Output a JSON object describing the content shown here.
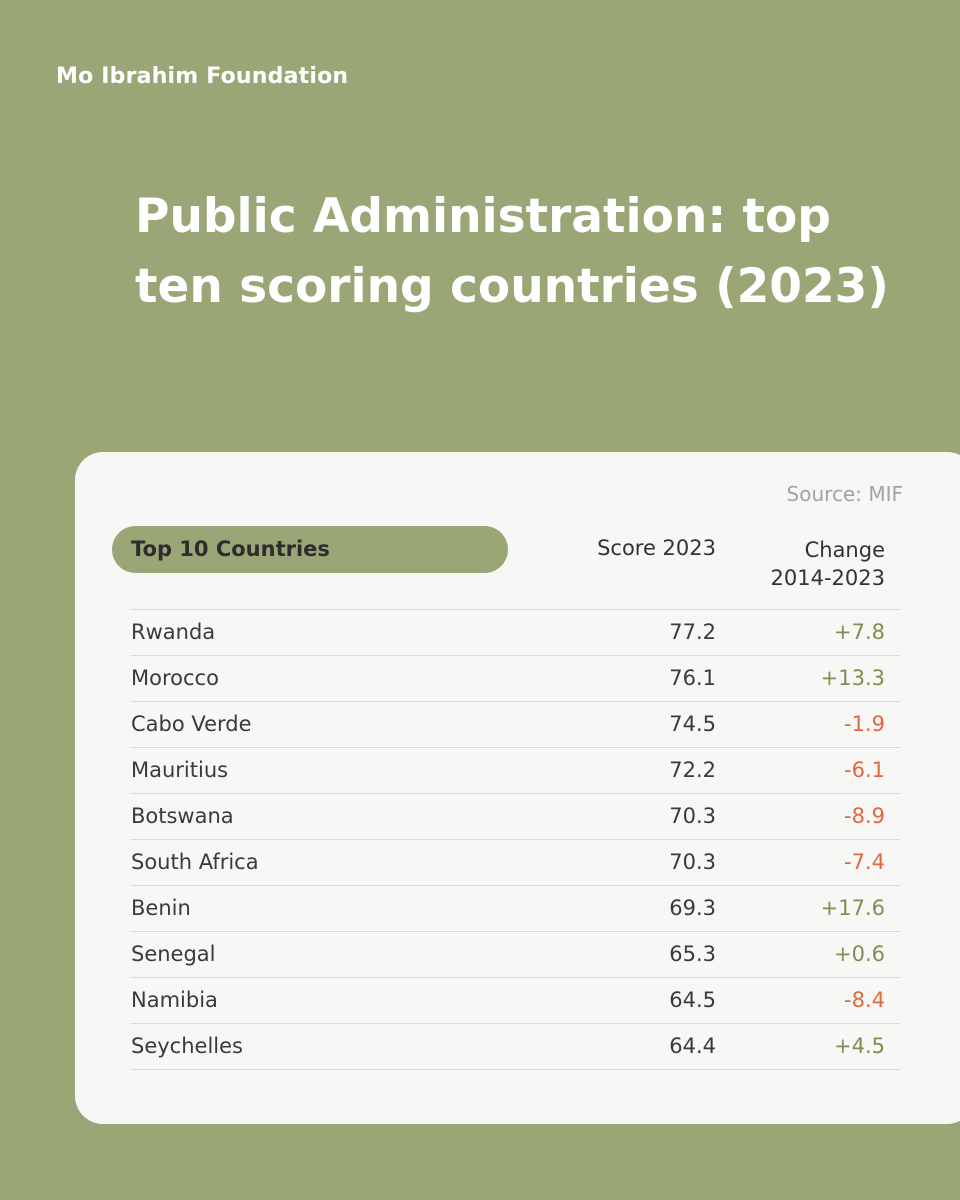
{
  "brand": "Mo Ibrahim Foundation",
  "title_line1": "Public Administration: top",
  "title_line2": "ten scoring countries (2023)",
  "source": "Source: MIF",
  "colors": {
    "background": "#9ba677",
    "positive": "#7e8f4f",
    "negative": "#e0673f"
  },
  "chart_data": {
    "type": "table",
    "title": "Public Administration: top ten scoring countries (2023)",
    "columns": [
      "Top 10 Countries",
      "Score 2023",
      "Change 2014-2023"
    ],
    "change_header_lines": [
      "Change",
      "2014-2023"
    ],
    "rows": [
      {
        "country": "Rwanda",
        "score": "77.2",
        "change": "+7.8"
      },
      {
        "country": "Morocco",
        "score": "76.1",
        "change": "+13.3"
      },
      {
        "country": "Cabo Verde",
        "score": "74.5",
        "change": "-1.9"
      },
      {
        "country": "Mauritius",
        "score": "72.2",
        "change": "-6.1"
      },
      {
        "country": "Botswana",
        "score": "70.3",
        "change": "-8.9"
      },
      {
        "country": "South Africa",
        "score": "70.3",
        "change": "-7.4"
      },
      {
        "country": "Benin",
        "score": "69.3",
        "change": "+17.6"
      },
      {
        "country": "Senegal",
        "score": "65.3",
        "change": "+0.6"
      },
      {
        "country": "Namibia",
        "score": "64.5",
        "change": "-8.4"
      },
      {
        "country": "Seychelles",
        "score": "64.4",
        "change": "+4.5"
      }
    ]
  }
}
